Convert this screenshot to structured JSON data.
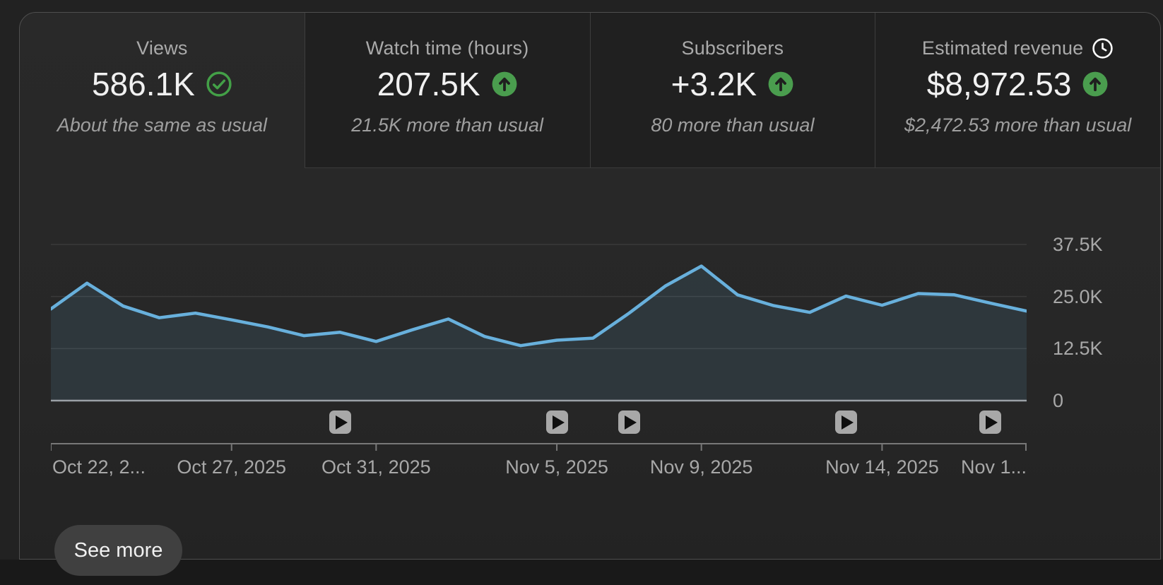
{
  "tabs": [
    {
      "label": "Views",
      "value": "586.1K",
      "subtitle": "About the same as usual",
      "status_icon": "check-circle",
      "selected": true
    },
    {
      "label": "Watch time (hours)",
      "value": "207.5K",
      "subtitle": "21.5K more than usual",
      "status_icon": "arrow-up-circle",
      "selected": false
    },
    {
      "label": "Subscribers",
      "value": "+3.2K",
      "subtitle": "80 more than usual",
      "status_icon": "arrow-up-circle",
      "selected": false
    },
    {
      "label": "Estimated revenue",
      "value": "$8,972.53",
      "subtitle": "$2,472.53 more than usual",
      "status_icon": "arrow-up-circle",
      "info_icon": "clock",
      "selected": false
    }
  ],
  "see_more_label": "See more",
  "colors": {
    "line": "#68b0dc",
    "area_fill": "rgba(104,170,210,0.13)",
    "grid": "#3a3a3a",
    "baseline": "#9aa0a6",
    "axis": "#787878",
    "accent_green": "#43a047",
    "badge_green_fill": "#4a9d4e"
  },
  "chart_data": {
    "type": "area",
    "metric": "Views per day",
    "x": [
      "Oct 22, 2025",
      "Oct 23, 2025",
      "Oct 24, 2025",
      "Oct 25, 2025",
      "Oct 26, 2025",
      "Oct 27, 2025",
      "Oct 28, 2025",
      "Oct 29, 2025",
      "Oct 30, 2025",
      "Oct 31, 2025",
      "Nov 1, 2025",
      "Nov 2, 2025",
      "Nov 3, 2025",
      "Nov 4, 2025",
      "Nov 5, 2025",
      "Nov 6, 2025",
      "Nov 7, 2025",
      "Nov 8, 2025",
      "Nov 9, 2025",
      "Nov 10, 2025",
      "Nov 11, 2025",
      "Nov 12, 2025",
      "Nov 13, 2025",
      "Nov 14, 2025",
      "Nov 15, 2025",
      "Nov 16, 2025",
      "Nov 17, 2025",
      "Nov 18, 2025"
    ],
    "values": [
      22000,
      28200,
      22700,
      19900,
      21000,
      19400,
      17700,
      15600,
      16400,
      14200,
      17000,
      19600,
      15400,
      13200,
      14500,
      15000,
      21000,
      27500,
      32300,
      25400,
      22800,
      21200,
      25100,
      22900,
      25700,
      25400,
      23400,
      21500
    ],
    "ylim": [
      0,
      37500
    ],
    "grid": true,
    "y_ticks": [
      {
        "label": "37.5K",
        "value": 37500
      },
      {
        "label": "25.0K",
        "value": 25000
      },
      {
        "label": "12.5K",
        "value": 12500
      },
      {
        "label": "0",
        "value": 0
      }
    ],
    "x_ticks": [
      {
        "day": 0,
        "label": "Oct 22, 2...",
        "align": "left"
      },
      {
        "day": 5,
        "label": "Oct 27, 2025",
        "align": "center"
      },
      {
        "day": 9,
        "label": "Oct 31, 2025",
        "align": "center"
      },
      {
        "day": 14,
        "label": "Nov 5, 2025",
        "align": "center"
      },
      {
        "day": 18,
        "label": "Nov 9, 2025",
        "align": "center"
      },
      {
        "day": 23,
        "label": "Nov 14, 2025",
        "align": "center"
      },
      {
        "day": 27,
        "label": "Nov 1...",
        "align": "right"
      }
    ],
    "video_markers": [
      {
        "day": 8,
        "date": "Oct 30, 2025"
      },
      {
        "day": 14,
        "date": "Nov 5, 2025"
      },
      {
        "day": 16,
        "date": "Nov 7, 2025"
      },
      {
        "day": 22,
        "date": "Nov 13, 2025"
      },
      {
        "day": 26,
        "date": "Nov 17, 2025"
      }
    ]
  }
}
